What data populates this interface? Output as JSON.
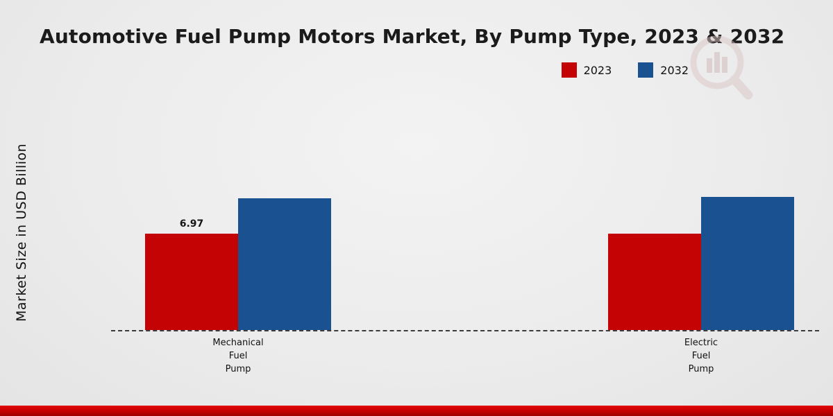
{
  "title": "Automotive Fuel Pump Motors Market, By Pump Type, 2023 & 2032",
  "ylabel": "Market Size in USD Billion",
  "legend": [
    {
      "label": "2023",
      "color": "#c40404"
    },
    {
      "label": "2032",
      "color": "#1a5291"
    }
  ],
  "chart_data": {
    "type": "bar",
    "title": "Automotive Fuel Pump Motors Market, By Pump Type, 2023 & 2032",
    "ylabel": "Market Size in USD Billion",
    "xlabel": "",
    "categories": [
      "Mechanical\nFuel\nPump",
      "Electric\nFuel\nPump"
    ],
    "series": [
      {
        "name": "2023",
        "color": "#c40404",
        "values": [
          6.97,
          6.97
        ]
      },
      {
        "name": "2032",
        "color": "#1a5291",
        "values": [
          9.5,
          9.6
        ]
      }
    ],
    "data_labels": [
      {
        "category": 0,
        "series": 0,
        "text": "6.97"
      }
    ],
    "ylim": [
      0,
      11
    ],
    "grid": false,
    "baseline_style": "dashed",
    "legend_position": "top-right",
    "accent_band_color": "#c40000",
    "background_color": "#ececec"
  }
}
